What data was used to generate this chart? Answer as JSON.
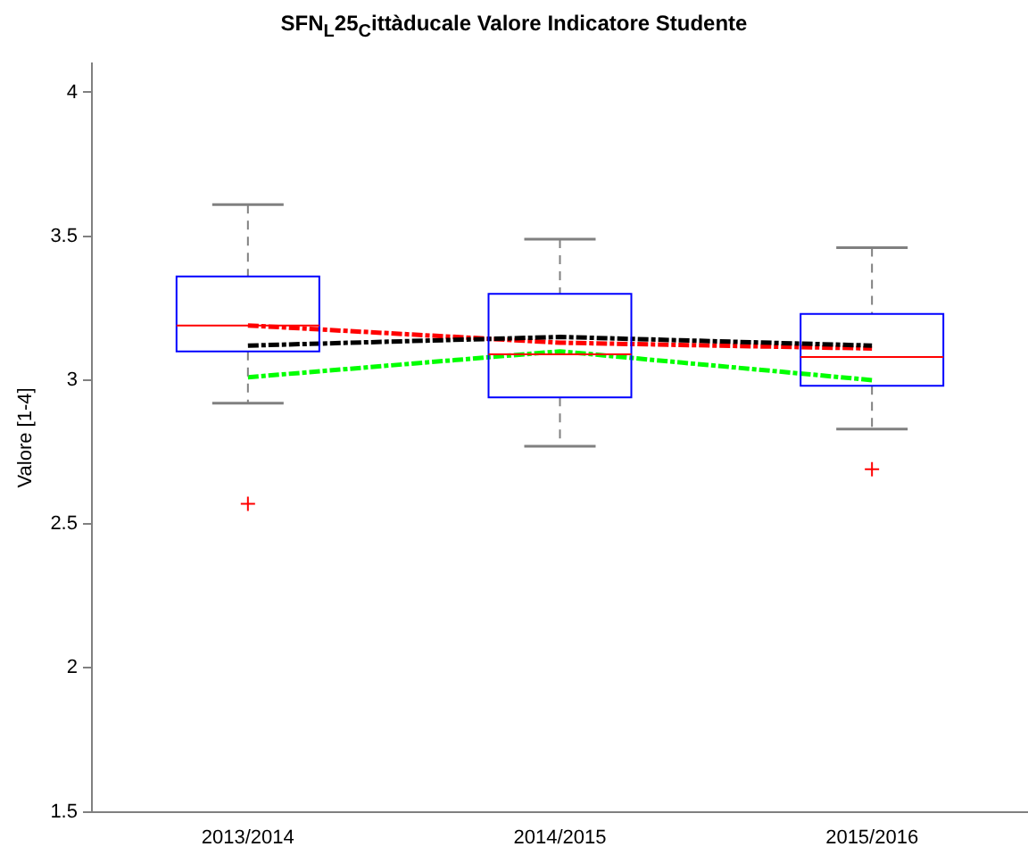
{
  "chart_data": {
    "type": "box",
    "title": "SFN$_{L}$25$_{C}$ittàducale Valore Indicatore Studente",
    "ylabel": "Valore [1-4]",
    "categories": [
      "2013/2014",
      "2014/2015",
      "2015/2016"
    ],
    "ylim": [
      1.5,
      4.1
    ],
    "yticks": [
      1.5,
      2,
      2.5,
      3,
      3.5,
      4
    ],
    "grid": false,
    "legend": false,
    "marker": "none",
    "line_style": "dashed",
    "series": [
      {
        "color": "#0000ff",
        "boxes": [
          {
            "low": 2.92,
            "q1": 3.1,
            "median": 3.19,
            "q3": 3.36,
            "high": 3.61,
            "outliers": [
              2.57
            ]
          },
          {
            "low": 2.77,
            "q1": 2.94,
            "median": 3.09,
            "q3": 3.3,
            "high": 3.49
          },
          {
            "low": 2.83,
            "q1": 2.98,
            "median": 3.08,
            "q3": 3.23,
            "high": 3.46,
            "outliers": [
              2.69
            ]
          }
        ]
      },
      {
        "type": "line",
        "color": "#ff0000",
        "values": [
          3.19,
          3.13,
          3.11
        ]
      },
      {
        "type": "line",
        "color": "#00ff00",
        "values": [
          3.01,
          3.1,
          3.0
        ]
      },
      {
        "type": "line",
        "color": "#000000",
        "values": [
          3.12,
          3.15,
          3.12
        ]
      }
    ]
  }
}
